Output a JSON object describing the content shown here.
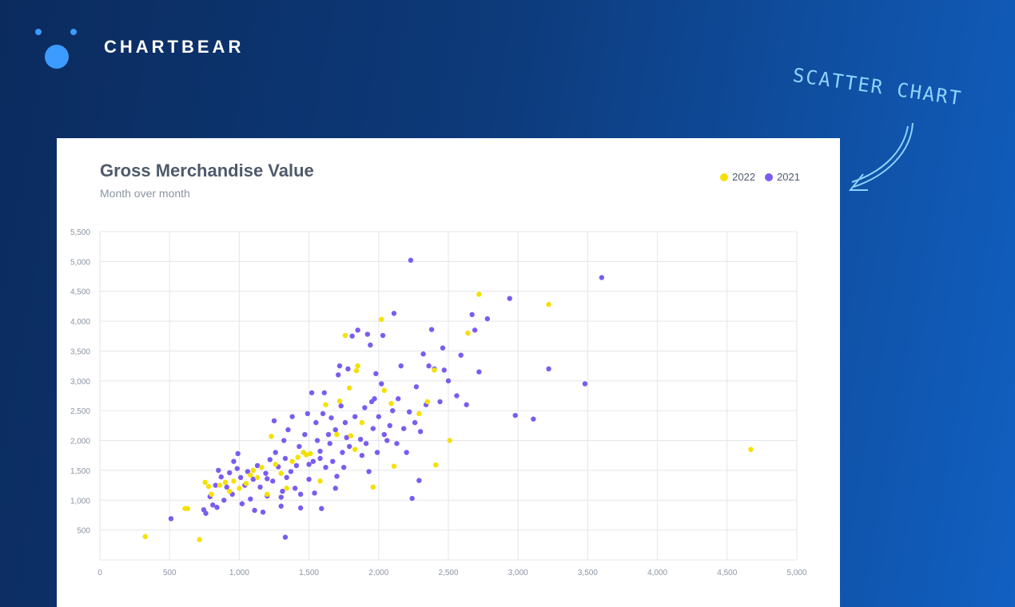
{
  "brand": {
    "name": "CHARTBEAR"
  },
  "annotation": {
    "text": "SCATTER CHART"
  },
  "colors": {
    "series_2022": "#f5e000",
    "series_2021": "#7a5cf0",
    "accent": "#3b9bff"
  },
  "chart_data": {
    "type": "scatter",
    "title": "Gross Merchandise Value",
    "subtitle": "Month over month",
    "xlabel": "",
    "ylabel": "",
    "xlim": [
      0,
      5000
    ],
    "ylim": [
      0,
      5500
    ],
    "grid": true,
    "legend_position": "top-right",
    "x_ticks": [
      "0",
      "500",
      "1,000",
      "1,500",
      "2,000",
      "2,500",
      "3,000",
      "3,500",
      "4,000",
      "4,500",
      "5,000"
    ],
    "y_ticks": [
      "500",
      "1,000",
      "1,500",
      "2,000",
      "2,500",
      "3,000",
      "3,500",
      "4,000",
      "4,500",
      "5,000",
      "5,500"
    ],
    "series": [
      {
        "name": "2022",
        "color": "#f5e000",
        "points": [
          [
            325,
            390
          ],
          [
            610,
            860
          ],
          [
            630,
            860
          ],
          [
            715,
            340
          ],
          [
            755,
            1300
          ],
          [
            780,
            1230
          ],
          [
            800,
            1100
          ],
          [
            860,
            1250
          ],
          [
            900,
            1300
          ],
          [
            930,
            1150
          ],
          [
            960,
            1320
          ],
          [
            1000,
            1200
          ],
          [
            1050,
            1280
          ],
          [
            1080,
            1420
          ],
          [
            1100,
            1500
          ],
          [
            1130,
            1380
          ],
          [
            1160,
            1550
          ],
          [
            1200,
            1100
          ],
          [
            1230,
            2070
          ],
          [
            1260,
            1600
          ],
          [
            1300,
            1450
          ],
          [
            1340,
            1200
          ],
          [
            1380,
            1650
          ],
          [
            1420,
            1720
          ],
          [
            1460,
            1800
          ],
          [
            1480,
            1760
          ],
          [
            1510,
            1780
          ],
          [
            1580,
            1320
          ],
          [
            1620,
            2600
          ],
          [
            1700,
            2100
          ],
          [
            1720,
            2660
          ],
          [
            1760,
            3760
          ],
          [
            1790,
            2880
          ],
          [
            1800,
            2080
          ],
          [
            1830,
            1850
          ],
          [
            1840,
            3170
          ],
          [
            1850,
            3250
          ],
          [
            1880,
            2300
          ],
          [
            1960,
            1220
          ],
          [
            2020,
            4030
          ],
          [
            2040,
            2840
          ],
          [
            2090,
            2620
          ],
          [
            2110,
            1570
          ],
          [
            2290,
            2450
          ],
          [
            2350,
            2650
          ],
          [
            2400,
            3180
          ],
          [
            2410,
            1590
          ],
          [
            2510,
            2000
          ],
          [
            2640,
            3800
          ],
          [
            2720,
            4450
          ],
          [
            3220,
            4280
          ],
          [
            4670,
            1850
          ]
        ]
      },
      {
        "name": "2021",
        "color": "#7a5cf0",
        "points": [
          [
            510,
            690
          ],
          [
            745,
            840
          ],
          [
            760,
            780
          ],
          [
            790,
            1060
          ],
          [
            810,
            920
          ],
          [
            830,
            1250
          ],
          [
            840,
            880
          ],
          [
            850,
            1500
          ],
          [
            870,
            1390
          ],
          [
            890,
            1000
          ],
          [
            910,
            1220
          ],
          [
            930,
            1460
          ],
          [
            950,
            1100
          ],
          [
            960,
            1650
          ],
          [
            985,
            1530
          ],
          [
            990,
            1780
          ],
          [
            1010,
            1380
          ],
          [
            1020,
            940
          ],
          [
            1040,
            1250
          ],
          [
            1060,
            1480
          ],
          [
            1080,
            1020
          ],
          [
            1100,
            1350
          ],
          [
            1110,
            830
          ],
          [
            1130,
            1580
          ],
          [
            1150,
            1220
          ],
          [
            1170,
            800
          ],
          [
            1190,
            1450
          ],
          [
            1200,
            1070
          ],
          [
            1220,
            1680
          ],
          [
            1240,
            1320
          ],
          [
            1250,
            2330
          ],
          [
            1260,
            1800
          ],
          [
            1280,
            1560
          ],
          [
            1300,
            900
          ],
          [
            1310,
            1150
          ],
          [
            1320,
            2000
          ],
          [
            1330,
            1700
          ],
          [
            1340,
            1380
          ],
          [
            1350,
            2180
          ],
          [
            1370,
            1480
          ],
          [
            1380,
            2400
          ],
          [
            1400,
            1200
          ],
          [
            1410,
            1580
          ],
          [
            1430,
            1900
          ],
          [
            1440,
            1100
          ],
          [
            1460,
            1800
          ],
          [
            1470,
            2100
          ],
          [
            1490,
            2450
          ],
          [
            1500,
            1350
          ],
          [
            1520,
            2800
          ],
          [
            1530,
            1650
          ],
          [
            1540,
            1120
          ],
          [
            1550,
            2300
          ],
          [
            1560,
            2000
          ],
          [
            1580,
            1820
          ],
          [
            1600,
            2450
          ],
          [
            1610,
            2800
          ],
          [
            1620,
            1550
          ],
          [
            1640,
            2100
          ],
          [
            1650,
            1950
          ],
          [
            1660,
            2380
          ],
          [
            1670,
            1650
          ],
          [
            1690,
            2180
          ],
          [
            1700,
            1400
          ],
          [
            1710,
            3100
          ],
          [
            1720,
            3250
          ],
          [
            1730,
            2580
          ],
          [
            1740,
            1800
          ],
          [
            1750,
            1550
          ],
          [
            1760,
            2300
          ],
          [
            1770,
            2050
          ],
          [
            1780,
            3200
          ],
          [
            1790,
            1900
          ],
          [
            1810,
            3750
          ],
          [
            1830,
            2400
          ],
          [
            1850,
            3850
          ],
          [
            1870,
            2020
          ],
          [
            1880,
            1750
          ],
          [
            1900,
            2550
          ],
          [
            1910,
            1950
          ],
          [
            1920,
            3780
          ],
          [
            1930,
            1480
          ],
          [
            1940,
            3600
          ],
          [
            1950,
            2650
          ],
          [
            1960,
            2200
          ],
          [
            1970,
            2700
          ],
          [
            1980,
            3120
          ],
          [
            1990,
            1800
          ],
          [
            2000,
            2400
          ],
          [
            2020,
            2950
          ],
          [
            2030,
            3760
          ],
          [
            2040,
            2100
          ],
          [
            2060,
            2000
          ],
          [
            2080,
            2250
          ],
          [
            2100,
            2500
          ],
          [
            2110,
            4130
          ],
          [
            2130,
            1950
          ],
          [
            2140,
            2700
          ],
          [
            2160,
            3250
          ],
          [
            2180,
            2200
          ],
          [
            2200,
            1800
          ],
          [
            2220,
            2480
          ],
          [
            2230,
            5020
          ],
          [
            2240,
            1030
          ],
          [
            2260,
            2300
          ],
          [
            2270,
            2900
          ],
          [
            2290,
            1330
          ],
          [
            2300,
            2150
          ],
          [
            2320,
            3450
          ],
          [
            2340,
            2600
          ],
          [
            2360,
            3250
          ],
          [
            2380,
            3860
          ],
          [
            2400,
            3200
          ],
          [
            2440,
            2650
          ],
          [
            2460,
            3550
          ],
          [
            2470,
            3180
          ],
          [
            2500,
            3000
          ],
          [
            2560,
            2750
          ],
          [
            2590,
            3430
          ],
          [
            2630,
            2600
          ],
          [
            2670,
            4110
          ],
          [
            2690,
            3850
          ],
          [
            2720,
            3150
          ],
          [
            2780,
            4040
          ],
          [
            2940,
            4380
          ],
          [
            2980,
            2420
          ],
          [
            3110,
            2360
          ],
          [
            3220,
            3200
          ],
          [
            3480,
            2950
          ],
          [
            3600,
            4730
          ],
          [
            1300,
            1050
          ],
          [
            1330,
            380
          ],
          [
            1500,
            1600
          ],
          [
            1580,
            1700
          ],
          [
            1690,
            1200
          ],
          [
            1440,
            870
          ],
          [
            1590,
            860
          ],
          [
            1200,
            1360
          ]
        ]
      }
    ]
  }
}
